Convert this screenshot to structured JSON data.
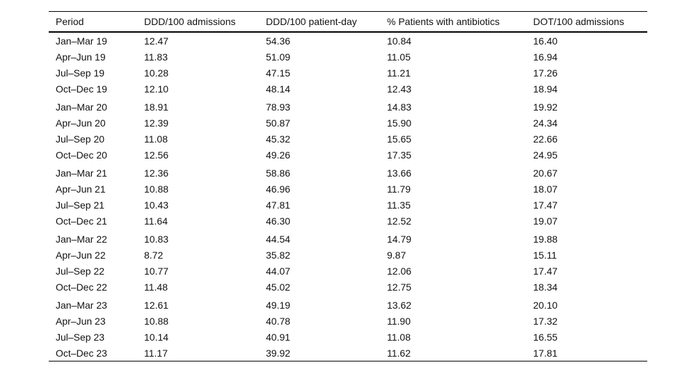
{
  "table": {
    "columns": [
      "Period",
      "DDD/100 admissions",
      "DDD/100 patient-day",
      "% Patients with antibiotics",
      "DOT/100 admissions"
    ],
    "rows": [
      [
        "Jan–Mar 19",
        "12.47",
        "54.36",
        "10.84",
        "16.40"
      ],
      [
        "Apr–Jun 19",
        "11.83",
        "51.09",
        "11.05",
        "16.94"
      ],
      [
        "Jul–Sep 19",
        "10.28",
        "47.15",
        "11.21",
        "17.26"
      ],
      [
        "Oct–Dec 19",
        "12.10",
        "48.14",
        "12.43",
        "18.94"
      ],
      [
        "Jan–Mar 20",
        "18.91",
        "78.93",
        "14.83",
        "19.92"
      ],
      [
        "Apr–Jun 20",
        "12.39",
        "50.87",
        "15.90",
        "24.34"
      ],
      [
        "Jul–Sep 20",
        "11.08",
        "45.32",
        "15.65",
        "22.66"
      ],
      [
        "Oct–Dec 20",
        "12.56",
        "49.26",
        "17.35",
        "24.95"
      ],
      [
        "Jan–Mar 21",
        "12.36",
        "58.86",
        "13.66",
        "20.67"
      ],
      [
        "Apr–Jun 21",
        "10.88",
        "46.96",
        "11.79",
        "18.07"
      ],
      [
        "Jul–Sep 21",
        "10.43",
        "47.81",
        "11.35",
        "17.47"
      ],
      [
        "Oct–Dec 21",
        "11.64",
        "46.30",
        "12.52",
        "19.07"
      ],
      [
        "Jan–Mar 22",
        "10.83",
        "44.54",
        "14.79",
        "19.88"
      ],
      [
        "Apr–Jun 22",
        "8.72",
        "35.82",
        "9.87",
        "15.11"
      ],
      [
        "Jul–Sep 22",
        "10.77",
        "44.07",
        "12.06",
        "17.47"
      ],
      [
        "Oct–Dec 22",
        "11.48",
        "45.02",
        "12.75",
        "18.34"
      ],
      [
        "Jan–Mar 23",
        "12.61",
        "49.19",
        "13.62",
        "20.10"
      ],
      [
        "Apr–Jun 23",
        "10.88",
        "40.78",
        "11.90",
        "17.32"
      ],
      [
        "Jul–Sep 23",
        "10.14",
        "40.91",
        "11.08",
        "16.55"
      ],
      [
        "Oct–Dec 23",
        "11.17",
        "39.92",
        "11.62",
        "17.81"
      ]
    ],
    "rows_per_group": 4
  },
  "colors": {
    "text": "#111111",
    "rule": "#000000",
    "background": "#ffffff"
  }
}
